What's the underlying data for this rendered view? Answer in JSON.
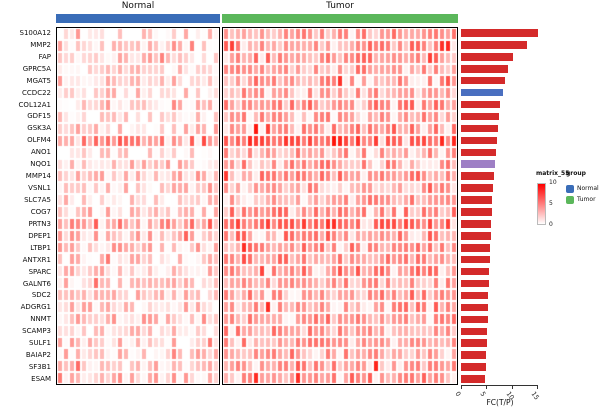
{
  "figure": {
    "groups": [
      {
        "label": "Normal",
        "color": "#3a6db8"
      },
      {
        "label": "Tumor",
        "color": "#5bb75b"
      }
    ],
    "legend": {
      "matrix_title": "matrix_55",
      "matrix_ticks": [
        "10",
        "5",
        "0"
      ],
      "matrix_high_color": "#ff0000",
      "matrix_low_color": "#ffffff",
      "group_title": "group",
      "group_items": [
        {
          "label": "Normal",
          "color": "#3a6db8"
        },
        {
          "label": "Tumor",
          "color": "#5bb75b"
        }
      ]
    }
  },
  "chart_data": [
    {
      "type": "heatmap",
      "rows": [
        "S100A12",
        "MMP2",
        "FAP",
        "GPRC5A",
        "MGAT5",
        "CCDC22",
        "COL12A1",
        "GDF15",
        "GSK3A",
        "OLFM4",
        "ANO1",
        "NQO1",
        "MMP14",
        "VSNL1",
        "SLC7A5",
        "COG7",
        "PRTN3",
        "DPEP1",
        "LTBP1",
        "ANTXR1",
        "SPARC",
        "GALNT6",
        "SDC2",
        "ADGRG1",
        "NNMT",
        "SCAMP3",
        "SULF1",
        "BAIAP2",
        "SF3B1",
        "ESAM"
      ],
      "column_groups": [
        {
          "name": "Normal",
          "columns": 27
        },
        {
          "name": "Tumor",
          "columns": 39
        }
      ],
      "value_scale": {
        "name": "matrix_55",
        "min": 0,
        "max": 10
      },
      "row_means": {
        "normal": [
          1.5,
          2.0,
          2.0,
          1.5,
          2.0,
          1.5,
          2.0,
          1.5,
          2.0,
          5.5,
          1.0,
          2.0,
          2.5,
          1.5,
          1.5,
          2.0,
          4.5,
          2.5,
          2.5,
          2.0,
          2.5,
          2.0,
          2.0,
          2.0,
          2.5,
          2.0,
          2.0,
          2.0,
          2.0,
          2.5
        ],
        "tumor": [
          4.0,
          4.5,
          4.5,
          4.0,
          4.0,
          3.5,
          4.5,
          4.0,
          5.0,
          7.0,
          3.5,
          4.0,
          4.5,
          3.5,
          4.0,
          4.5,
          6.5,
          5.0,
          4.5,
          4.5,
          5.0,
          4.0,
          4.0,
          4.5,
          4.5,
          4.0,
          4.5,
          4.0,
          4.5,
          4.5
        ]
      }
    },
    {
      "type": "bar",
      "orientation": "horizontal",
      "categories": [
        "S100A12",
        "MMP2",
        "FAP",
        "GPRC5A",
        "MGAT5",
        "CCDC22",
        "COL12A1",
        "GDF15",
        "GSK3A",
        "OLFM4",
        "ANO1",
        "NQO1",
        "MMP14",
        "VSNL1",
        "SLC7A5",
        "COG7",
        "PRTN3",
        "DPEP1",
        "LTBP1",
        "ANTXR1",
        "SPARC",
        "GALNT6",
        "SDC2",
        "ADGRG1",
        "NNMT",
        "SCAMP3",
        "SULF1",
        "BAIAP2",
        "SF3B1",
        "ESAM"
      ],
      "values": [
        15.2,
        13.0,
        10.2,
        9.3,
        8.8,
        8.3,
        7.8,
        7.5,
        7.3,
        7.1,
        6.9,
        6.7,
        6.5,
        6.3,
        6.2,
        6.1,
        6.0,
        5.9,
        5.8,
        5.7,
        5.6,
        5.5,
        5.4,
        5.4,
        5.3,
        5.2,
        5.1,
        5.0,
        5.0,
        4.8
      ],
      "bar_colors": [
        "#d42a2a",
        "#d42a2a",
        "#d42a2a",
        "#d42a2a",
        "#d42a2a",
        "#4a6fc0",
        "#d42a2a",
        "#d42a2a",
        "#d42a2a",
        "#d42a2a",
        "#d42a2a",
        "#9e7fc5",
        "#d42a2a",
        "#d42a2a",
        "#d42a2a",
        "#d42a2a",
        "#d42a2a",
        "#d42a2a",
        "#d42a2a",
        "#d42a2a",
        "#d42a2a",
        "#d42a2a",
        "#d42a2a",
        "#d42a2a",
        "#d42a2a",
        "#d42a2a",
        "#d42a2a",
        "#d42a2a",
        "#d42a2a",
        "#d42a2a"
      ],
      "default_color": "#d42a2a",
      "xlabel": "FC(T/P)",
      "xlim": [
        0,
        15
      ],
      "xticks": [
        0,
        5,
        10,
        15
      ]
    }
  ]
}
